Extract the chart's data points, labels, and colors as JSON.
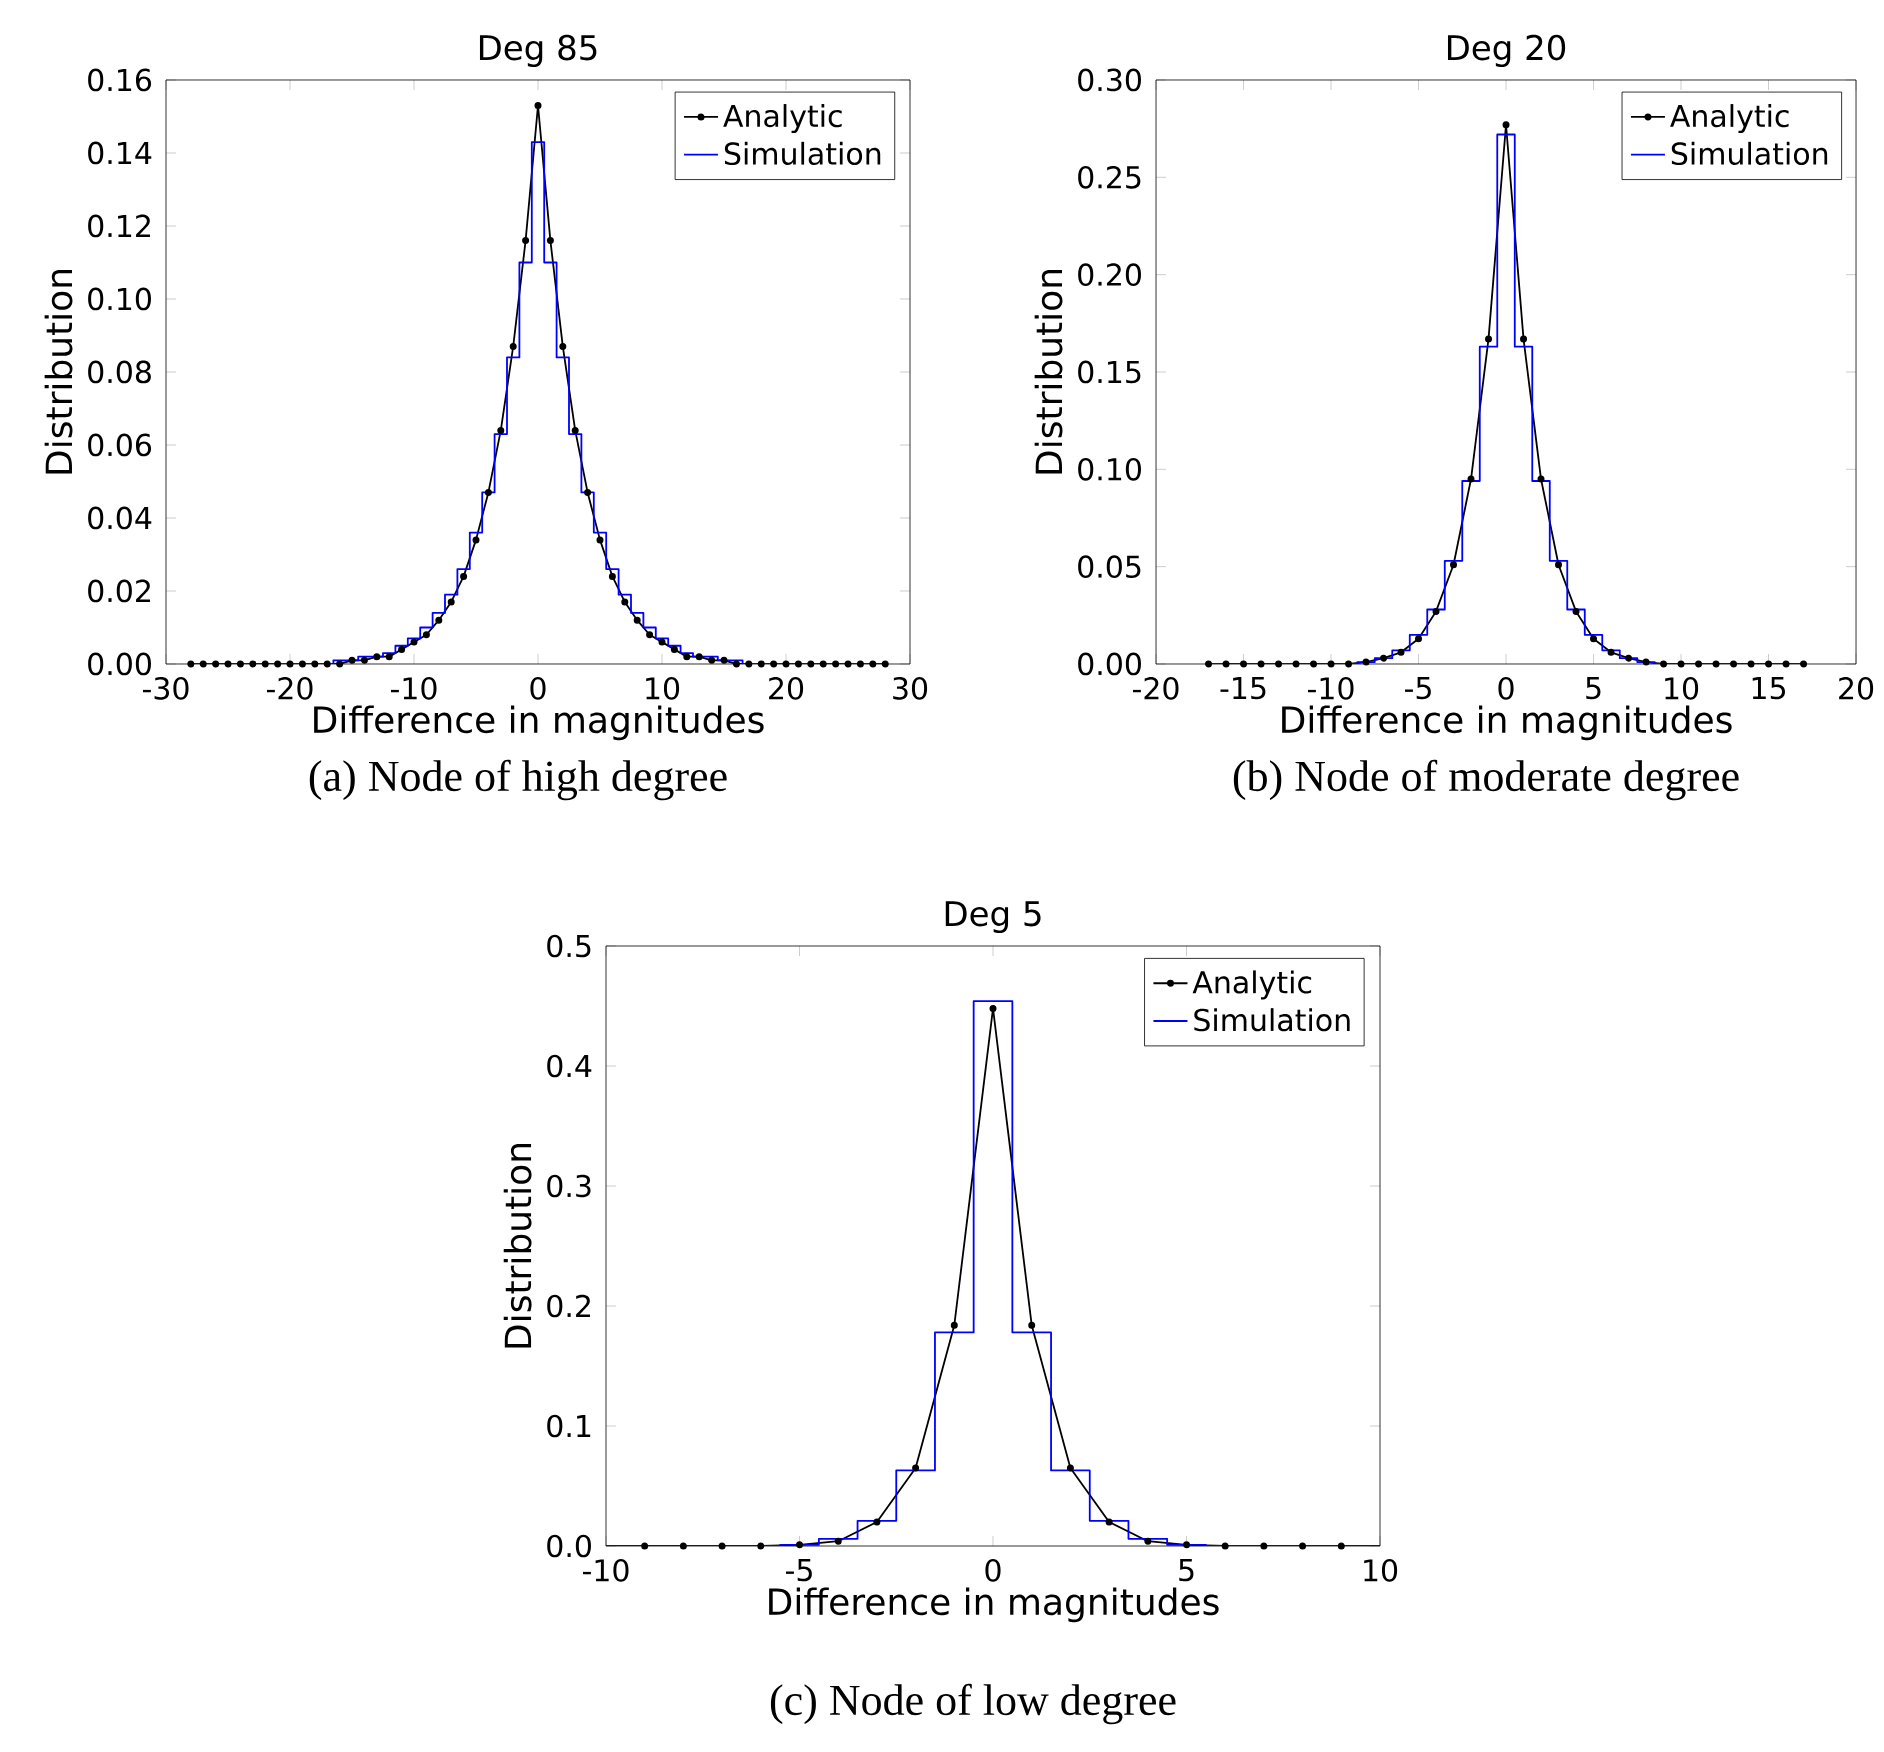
{
  "chart_data": [
    {
      "type": "line",
      "title": "Deg 85",
      "xlabel": "Difference in magnitudes",
      "ylabel": "Distribution",
      "annotations": [
        "(a) Node of high degree"
      ],
      "legend": "top right",
      "xlim": [
        -30,
        30
      ],
      "xticks": [
        -30,
        -20,
        -10,
        0,
        10,
        20,
        30
      ],
      "ylim": [
        0,
        0.16
      ],
      "yticks": [
        {
          "value": 0,
          "label": "0.00"
        },
        {
          "value": 0.02,
          "label": "0.02"
        },
        {
          "value": 0.04,
          "label": "0.04"
        },
        {
          "value": 0.06,
          "label": "0.06"
        },
        {
          "value": 0.08,
          "label": "0.08"
        },
        {
          "value": 0.1,
          "label": "0.10"
        },
        {
          "value": 0.12,
          "label": "0.12"
        },
        {
          "value": 0.14,
          "label": "0.14"
        },
        {
          "value": 0.16,
          "label": "0.16"
        }
      ],
      "series": [
        {
          "name": "Analytic",
          "color": "#000000",
          "marker": "circle",
          "x": [
            -28,
            -27,
            -26,
            -25,
            -24,
            -23,
            -22,
            -21,
            -20,
            -19,
            -18,
            -17,
            -16,
            -15,
            -14,
            -13,
            -12,
            -11,
            -10,
            -9,
            -8,
            -7,
            -6,
            -5,
            -4,
            -3,
            -2,
            -1,
            0,
            1,
            2,
            3,
            4,
            5,
            6,
            7,
            8,
            9,
            10,
            11,
            12,
            13,
            14,
            15,
            16,
            17,
            18,
            19,
            20,
            21,
            22,
            23,
            24,
            25,
            26,
            27,
            28
          ],
          "values": [
            0,
            0,
            0,
            0,
            0,
            0,
            0,
            0,
            0,
            0,
            0,
            0,
            0,
            0.001,
            0.001,
            0.002,
            0.002,
            0.004,
            0.006,
            0.008,
            0.012,
            0.017,
            0.024,
            0.034,
            0.047,
            0.064,
            0.087,
            0.116,
            0.153,
            0.116,
            0.087,
            0.064,
            0.047,
            0.034,
            0.024,
            0.017,
            0.012,
            0.008,
            0.006,
            0.004,
            0.002,
            0.002,
            0.001,
            0.001,
            0,
            0,
            0,
            0,
            0,
            0,
            0,
            0,
            0,
            0,
            0,
            0,
            0
          ]
        },
        {
          "name": "Simulation",
          "type": "step",
          "color": "#0000ff",
          "marker": "none",
          "x": [
            -28,
            -27,
            -26,
            -25,
            -24,
            -23,
            -22,
            -21,
            -20,
            -19,
            -18,
            -17,
            -16,
            -15,
            -14,
            -13,
            -12,
            -11,
            -10,
            -9,
            -8,
            -7,
            -6,
            -5,
            -4,
            -3,
            -2,
            -1,
            0,
            1,
            2,
            3,
            4,
            5,
            6,
            7,
            8,
            9,
            10,
            11,
            12,
            13,
            14,
            15,
            16,
            17,
            18,
            19,
            20,
            21,
            22,
            23,
            24,
            25,
            26,
            27,
            28
          ],
          "values": [
            0,
            0,
            0,
            0,
            0,
            0,
            0,
            0,
            0,
            0,
            0,
            0,
            0.001,
            0.001,
            0.002,
            0.002,
            0.003,
            0.005,
            0.007,
            0.01,
            0.014,
            0.019,
            0.026,
            0.036,
            0.047,
            0.063,
            0.084,
            0.11,
            0.143,
            0.11,
            0.084,
            0.063,
            0.047,
            0.036,
            0.026,
            0.019,
            0.014,
            0.01,
            0.007,
            0.005,
            0.003,
            0.002,
            0.002,
            0.001,
            0.001,
            0,
            0,
            0,
            0,
            0,
            0,
            0,
            0,
            0,
            0,
            0,
            0
          ]
        }
      ]
    },
    {
      "type": "line",
      "title": "Deg 20",
      "xlabel": "Difference in magnitudes",
      "ylabel": "Distribution",
      "annotations": [
        "(b) Node of moderate degree"
      ],
      "legend": "top right",
      "xlim": [
        -20,
        20
      ],
      "xticks": [
        -20,
        -15,
        -10,
        -5,
        0,
        5,
        10,
        15,
        20
      ],
      "ylim": [
        0,
        0.3
      ],
      "yticks": [
        {
          "value": 0,
          "label": "0.00"
        },
        {
          "value": 0.05,
          "label": "0.05"
        },
        {
          "value": 0.1,
          "label": "0.10"
        },
        {
          "value": 0.15,
          "label": "0.15"
        },
        {
          "value": 0.2,
          "label": "0.20"
        },
        {
          "value": 0.25,
          "label": "0.25"
        },
        {
          "value": 0.3,
          "label": "0.30"
        }
      ],
      "series": [
        {
          "name": "Analytic",
          "color": "#000000",
          "marker": "circle",
          "x": [
            -17,
            -16,
            -15,
            -14,
            -13,
            -12,
            -11,
            -10,
            -9,
            -8,
            -7,
            -6,
            -5,
            -4,
            -3,
            -2,
            -1,
            0,
            1,
            2,
            3,
            4,
            5,
            6,
            7,
            8,
            9,
            10,
            11,
            12,
            13,
            14,
            15,
            16,
            17
          ],
          "values": [
            0,
            0,
            0,
            0,
            0,
            0,
            0,
            0,
            0,
            0.001,
            0.003,
            0.006,
            0.013,
            0.027,
            0.051,
            0.095,
            0.167,
            0.277,
            0.167,
            0.095,
            0.051,
            0.027,
            0.013,
            0.006,
            0.003,
            0.001,
            0,
            0,
            0,
            0,
            0,
            0,
            0,
            0,
            0
          ]
        },
        {
          "name": "Simulation",
          "type": "step",
          "color": "#0000ff",
          "marker": "none",
          "x": [
            -17,
            -16,
            -15,
            -14,
            -13,
            -12,
            -11,
            -10,
            -9,
            -8,
            -7,
            -6,
            -5,
            -4,
            -3,
            -2,
            -1,
            0,
            1,
            2,
            3,
            4,
            5,
            6,
            7,
            8,
            9,
            10,
            11,
            12,
            13,
            14,
            15,
            16,
            17
          ],
          "values": [
            0,
            0,
            0,
            0,
            0,
            0,
            0,
            0,
            0,
            0.001,
            0.003,
            0.007,
            0.015,
            0.028,
            0.053,
            0.094,
            0.163,
            0.272,
            0.163,
            0.094,
            0.053,
            0.028,
            0.015,
            0.007,
            0.003,
            0.001,
            0,
            0,
            0,
            0,
            0,
            0,
            0,
            0,
            0
          ]
        }
      ]
    },
    {
      "type": "line",
      "title": "Deg 5",
      "xlabel": "Difference in magnitudes",
      "ylabel": "Distribution",
      "annotations": [
        "(c) Node of low degree"
      ],
      "legend": "top right",
      "xlim": [
        -10,
        10
      ],
      "xticks": [
        -10,
        -5,
        0,
        5,
        10
      ],
      "ylim": [
        0,
        0.5
      ],
      "yticks": [
        {
          "value": 0,
          "label": "0.0"
        },
        {
          "value": 0.1,
          "label": "0.1"
        },
        {
          "value": 0.2,
          "label": "0.2"
        },
        {
          "value": 0.3,
          "label": "0.3"
        },
        {
          "value": 0.4,
          "label": "0.4"
        },
        {
          "value": 0.5,
          "label": "0.5"
        }
      ],
      "series": [
        {
          "name": "Analytic",
          "color": "#000000",
          "marker": "circle",
          "x": [
            -9,
            -8,
            -7,
            -6,
            -5,
            -4,
            -3,
            -2,
            -1,
            0,
            1,
            2,
            3,
            4,
            5,
            6,
            7,
            8,
            9
          ],
          "values": [
            0,
            0,
            0,
            0,
            0.001,
            0.004,
            0.02,
            0.065,
            0.184,
            0.448,
            0.184,
            0.065,
            0.02,
            0.004,
            0.001,
            0,
            0,
            0,
            0
          ]
        },
        {
          "name": "Simulation",
          "type": "step",
          "color": "#0000ff",
          "marker": "none",
          "x": [
            -10,
            -9,
            -8,
            -7,
            -6,
            -5,
            -4,
            -3,
            -2,
            -1,
            0,
            1,
            2,
            3,
            4,
            5,
            6,
            7,
            8,
            9,
            10
          ],
          "values": [
            0,
            0,
            0,
            0,
            0,
            0.001,
            0.006,
            0.021,
            0.063,
            0.178,
            0.454,
            0.178,
            0.063,
            0.021,
            0.006,
            0.001,
            0,
            0,
            0,
            0,
            0
          ]
        }
      ]
    }
  ]
}
